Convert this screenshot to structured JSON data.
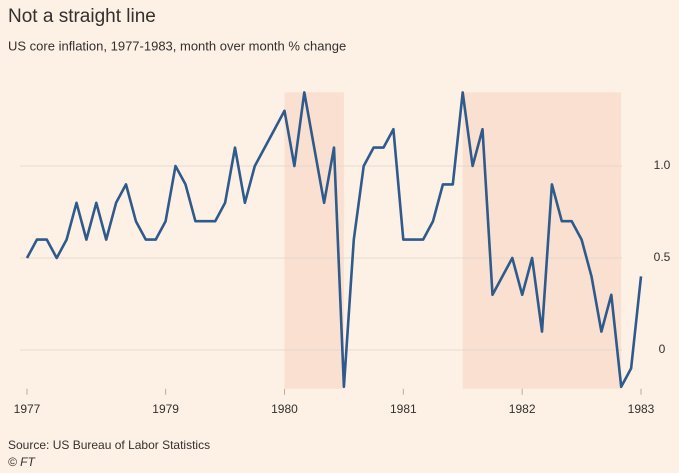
{
  "chart_data": {
    "type": "line",
    "title": "Not a straight line",
    "subtitle": "US core inflation, 1977-1983, month over month % change",
    "source": "Source: US Bureau of Labor Statistics",
    "credit": "© FT",
    "categories": [
      "1977",
      null,
      null,
      null,
      null,
      null,
      null,
      null,
      null,
      null,
      null,
      null,
      null,
      null,
      "1979",
      null,
      null,
      null,
      null,
      null,
      null,
      null,
      null,
      null,
      null,
      null,
      "1980",
      null,
      null,
      null,
      null,
      null,
      null,
      null,
      null,
      null,
      null,
      null,
      "1981",
      null,
      null,
      null,
      null,
      null,
      null,
      null,
      null,
      null,
      null,
      null,
      "1982",
      null,
      null,
      null,
      null,
      null,
      null,
      null,
      null,
      null,
      null,
      null,
      "1983"
    ],
    "series": [
      {
        "name": "US core inflation",
        "color": "#2e5a8c",
        "values": [
          0.5,
          0.6,
          0.6,
          0.5,
          0.6,
          0.8,
          0.6,
          0.8,
          0.6,
          0.8,
          0.9,
          0.7,
          0.6,
          0.6,
          0.7,
          1.0,
          0.9,
          0.7,
          0.7,
          0.7,
          0.8,
          1.1,
          0.8,
          1.0,
          1.1,
          1.2,
          1.3,
          1.0,
          1.4,
          1.1,
          0.8,
          1.1,
          -0.2,
          0.6,
          1.0,
          1.1,
          1.1,
          1.2,
          0.6,
          0.6,
          0.6,
          0.7,
          0.9,
          0.9,
          1.4,
          1.0,
          1.2,
          0.3,
          0.4,
          0.5,
          0.3,
          0.5,
          0.1,
          0.9,
          0.7,
          0.7,
          0.6,
          0.4,
          0.1,
          0.3,
          -0.2,
          -0.1,
          0.4
        ]
      }
    ],
    "ylim": [
      -0.2,
      1.4
    ],
    "yticks": [
      0,
      0.5,
      {
        "value": 1,
        "label": "1.0"
      }
    ],
    "grid": true,
    "shading": {
      "color": "#f9e0d0",
      "ranges": [
        [
          26,
          32
        ],
        [
          44,
          60
        ]
      ]
    }
  }
}
